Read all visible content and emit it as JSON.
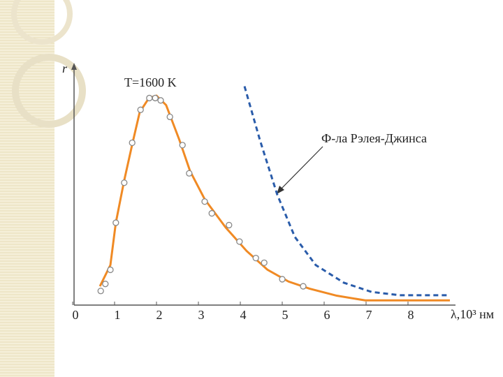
{
  "chart_data": {
    "type": "line",
    "ylabel": "r",
    "xlabel": "λ,10³ нм",
    "annotations": [
      "T=1600 K",
      "Ф-ла Рэлея-Джинса"
    ],
    "xlim": [
      0,
      9
    ],
    "ylim": [
      0,
      100
    ],
    "xticks": [
      0,
      1,
      2,
      3,
      4,
      5,
      6,
      7,
      8
    ],
    "series": [
      {
        "kind": "line",
        "color": "#f08a24",
        "dashed": false,
        "x": [
          0.65,
          0.9,
          1.03,
          1.23,
          1.43,
          1.6,
          1.82,
          2.0,
          2.23,
          2.55,
          2.8,
          3.15,
          3.65,
          4.15,
          4.65,
          5.15,
          5.65,
          6.3,
          6.98,
          7.65,
          9.0
        ],
        "values": [
          8,
          17,
          35,
          53,
          69,
          82,
          88,
          89,
          85,
          70,
          57,
          45,
          33,
          23,
          15,
          10,
          7,
          4,
          2,
          2,
          2
        ]
      },
      {
        "kind": "line",
        "color": "#2a5caa",
        "dashed": true,
        "x": [
          4.1,
          4.47,
          4.88,
          5.3,
          5.8,
          6.47,
          7.13,
          7.8,
          9.0
        ],
        "values": [
          93,
          70,
          47,
          29,
          17,
          9.5,
          5.6,
          4.2,
          4.2
        ]
      },
      {
        "kind": "scatter",
        "color": "#888888",
        "x": [
          0.67,
          0.78,
          0.9,
          1.03,
          1.23,
          1.42,
          1.62,
          1.83,
          1.97,
          2.1,
          2.32,
          2.62,
          2.78,
          3.15,
          3.32,
          3.73,
          3.98,
          4.37,
          4.57,
          5.0,
          5.5
        ],
        "values": [
          6,
          9,
          15,
          35,
          52,
          69,
          83,
          88,
          88,
          87,
          80,
          68,
          56,
          44,
          39,
          34,
          27,
          20,
          18,
          11,
          8
        ]
      }
    ]
  }
}
